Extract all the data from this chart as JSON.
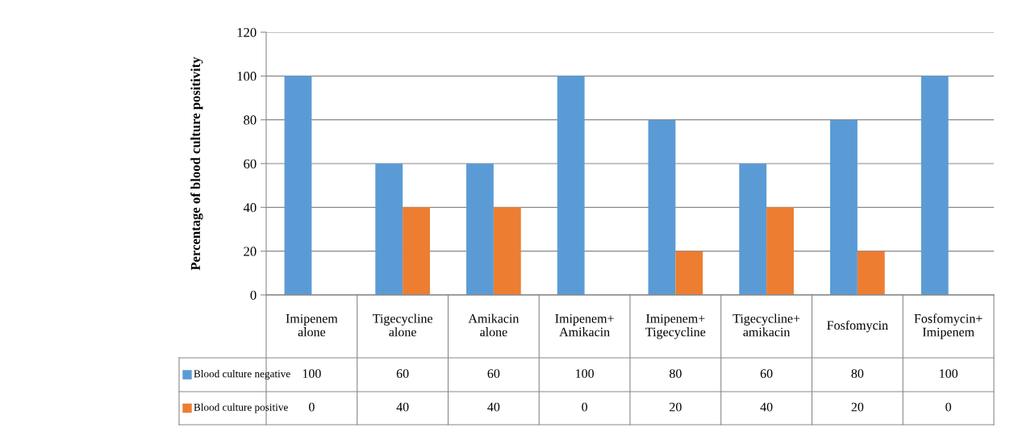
{
  "chart_data": {
    "type": "bar",
    "ylabel": "Percentage of blood culture positivity",
    "categories": [
      "Imipenem alone",
      "Tigecycline alone",
      "Amikacin alone",
      "Imipenem+Amikacin",
      "Imipenem+Tigecycline",
      "Tigecycline+amikacin",
      "Fosfomycin",
      "Fosfomycin+Imipenem"
    ],
    "series": [
      {
        "name": "Blood culture negative",
        "color": "#5b9bd5",
        "values": [
          100,
          60,
          60,
          100,
          80,
          60,
          80,
          100
        ]
      },
      {
        "name": "Blood culture positive",
        "color": "#ed7d31",
        "values": [
          0,
          40,
          40,
          0,
          20,
          40,
          20,
          0
        ]
      }
    ],
    "ylim": [
      0,
      120
    ],
    "yticks": [
      0,
      20,
      40,
      60,
      80,
      100,
      120
    ],
    "grid": "y",
    "legend": "bottom",
    "data_labels": true
  }
}
